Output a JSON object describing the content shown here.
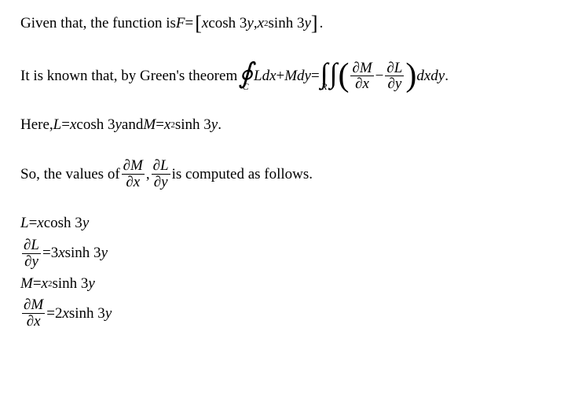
{
  "p1": {
    "lead": "Given that, the function is ",
    "F": "F",
    "eq": " = ",
    "lb": "[",
    "inside_a": "x",
    "inside_cosh": " cosh 3",
    "inside_y1": "y",
    "comma": ",",
    "inside_b": "x",
    "sq2": "2",
    "inside_sinh": " sinh 3",
    "inside_y2": "y",
    "rb": "]",
    "dot": "."
  },
  "p2": {
    "lead": "It is known that, by Green's theorem ",
    "oint_sym": "∮",
    "oint_sub": "C",
    "Ldx": "Ldx",
    "plus": " + ",
    "Mdy": "Mdy",
    "eq": " = ",
    "int1": "∫",
    "int2": "∫",
    "int_sub": "R",
    "lp": "(",
    "partial": "∂",
    "M": "M",
    "x": "x",
    "minus": " − ",
    "L": "L",
    "y": "y",
    "rp": ")",
    "dxdy": "dxdy",
    "dot": "."
  },
  "p3": {
    "lead": "Here, ",
    "L": "L",
    "eq": " = ",
    "xcosh": "x",
    "cosh": " cosh 3",
    "y1": "y",
    "and": " and ",
    "M": "M",
    "x2": "x",
    "sq2": "2",
    "sinh": " sinh 3",
    "y2": "y",
    "dot": "."
  },
  "p4": {
    "lead": "So, the values of ",
    "partial": "∂",
    "M": "M",
    "x": "x",
    "comma": ",",
    "L": "L",
    "y": "y",
    "tail": " is computed as follows."
  },
  "p5": {
    "l1_L": "L",
    "l1_eq": " = ",
    "l1_x": "x",
    "l1_cosh": " cosh 3",
    "l1_y": "y",
    "partial": "∂",
    "L": "L",
    "y": "y",
    "l2_eq": " = ",
    "l2_3x": "3",
    "l2_x": "x",
    "l2_sinh": " sinh 3",
    "l2_y": "y",
    "l3_M": "M",
    "l3_eq": " = ",
    "l3_x": "x",
    "l3_sq": "2",
    "l3_sinh": " sinh 3",
    "l3_y": "y",
    "M": "M",
    "x": "x",
    "l4_eq": " = ",
    "l4_2": "2",
    "l4_x": "x",
    "l4_sinh": " sinh 3",
    "l4_y": "y"
  }
}
